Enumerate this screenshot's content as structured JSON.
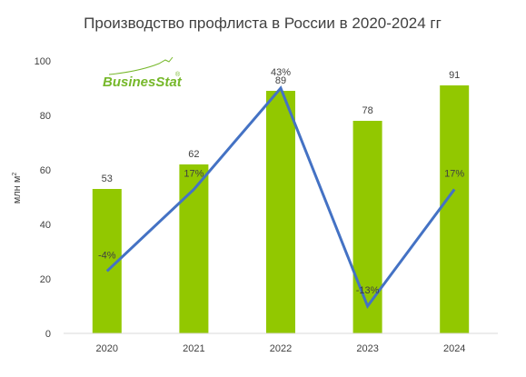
{
  "chart_data": {
    "type": "bar",
    "title": "Производство профлиста в России в 2020-2024 гг",
    "ylabel": "млн м",
    "ylabel_sup": "2",
    "xlabel": "",
    "categories": [
      "2020",
      "2021",
      "2022",
      "2023",
      "2024"
    ],
    "series": [
      {
        "values": [
          53,
          62,
          89,
          78,
          91
        ],
        "color": "#92c800",
        "kind": "bar"
      },
      {
        "values": [
          -4,
          17,
          43,
          -13,
          17
        ],
        "labels": [
          "-4%",
          "17%",
          "43%",
          "-13%",
          "17%"
        ],
        "color": "#4472c4",
        "kind": "line"
      }
    ],
    "ylim": [
      0,
      100
    ],
    "yticks": [
      "0",
      "20",
      "40",
      "60",
      "80",
      "100"
    ],
    "grid": false
  },
  "logo": {
    "text_business": "Busines",
    "text_stat": "Stat",
    "mark": "®",
    "color": "#76b82a"
  }
}
